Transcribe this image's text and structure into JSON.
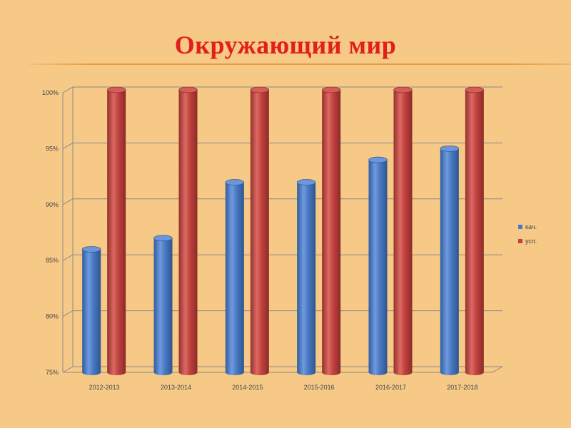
{
  "title": "Окружающий мир",
  "colors": {
    "background": "#f6c987",
    "title": "#e0201a",
    "series1": "#4a79c3",
    "series2": "#c0423e"
  },
  "chart_data": {
    "type": "bar",
    "categories": [
      "2012-2013",
      "2013-2014",
      "2014-2015",
      "2015-2016",
      "2016-2017",
      "2017-2018"
    ],
    "series": [
      {
        "name": "кач.",
        "values": [
          86,
          87,
          92,
          92,
          94,
          95
        ]
      },
      {
        "name": "усп.",
        "values": [
          100,
          100,
          100,
          100,
          100,
          100
        ]
      }
    ],
    "ylim": [
      75,
      100
    ],
    "yticks": [
      "75%",
      "80%",
      "85%",
      "90%",
      "95%",
      "100%"
    ],
    "unit": "%",
    "grid": true,
    "legend": "right"
  }
}
